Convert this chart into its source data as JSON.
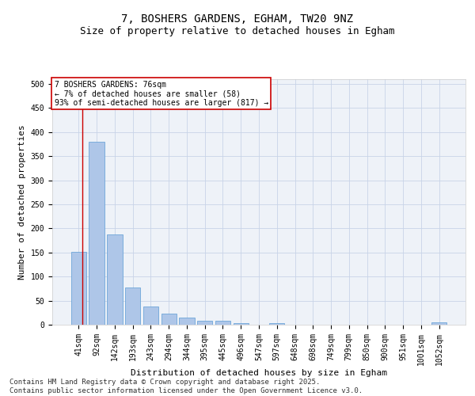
{
  "title": "7, BOSHERS GARDENS, EGHAM, TW20 9NZ",
  "subtitle": "Size of property relative to detached houses in Egham",
  "xlabel": "Distribution of detached houses by size in Egham",
  "ylabel": "Number of detached properties",
  "categories": [
    "41sqm",
    "92sqm",
    "142sqm",
    "193sqm",
    "243sqm",
    "294sqm",
    "344sqm",
    "395sqm",
    "445sqm",
    "496sqm",
    "547sqm",
    "597sqm",
    "648sqm",
    "698sqm",
    "749sqm",
    "799sqm",
    "850sqm",
    "900sqm",
    "951sqm",
    "1001sqm",
    "1052sqm"
  ],
  "values": [
    152,
    380,
    188,
    77,
    38,
    23,
    15,
    8,
    8,
    3,
    0,
    4,
    0,
    0,
    0,
    0,
    0,
    0,
    0,
    0,
    5
  ],
  "bar_color": "#aec6e8",
  "bar_edge_color": "#5b9bd5",
  "annotation_line1": "7 BOSHERS GARDENS: 76sqm",
  "annotation_line2": "← 7% of detached houses are smaller (58)",
  "annotation_line3": "93% of semi-detached houses are larger (817) →",
  "annotation_box_color": "#cc0000",
  "vline_color": "#cc0000",
  "ylim": [
    0,
    510
  ],
  "yticks": [
    0,
    50,
    100,
    150,
    200,
    250,
    300,
    350,
    400,
    450,
    500
  ],
  "grid_color": "#c8d4e8",
  "background_color": "#eef2f8",
  "footer_line1": "Contains HM Land Registry data © Crown copyright and database right 2025.",
  "footer_line2": "Contains public sector information licensed under the Open Government Licence v3.0.",
  "title_fontsize": 10,
  "subtitle_fontsize": 9,
  "axis_label_fontsize": 8,
  "tick_fontsize": 7,
  "footer_fontsize": 6.5,
  "annotation_fontsize": 7
}
